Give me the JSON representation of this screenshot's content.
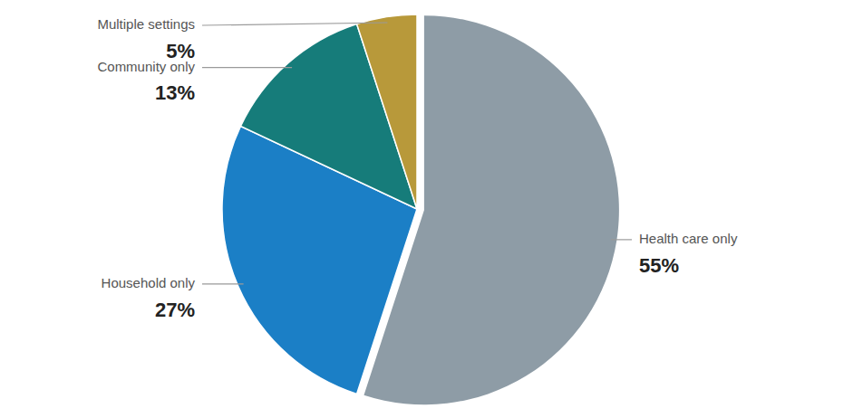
{
  "chart_data": {
    "type": "pie",
    "categories": [
      "Health care only",
      "Household only",
      "Community only",
      "Multiple settings"
    ],
    "values": [
      55,
      27,
      13,
      5
    ],
    "value_labels": [
      "55%",
      "27%",
      "13%",
      "5%"
    ],
    "colors": [
      "#8e9ca6",
      "#1b7fc6",
      "#167c7a",
      "#b8993a"
    ],
    "data_labels": true
  }
}
